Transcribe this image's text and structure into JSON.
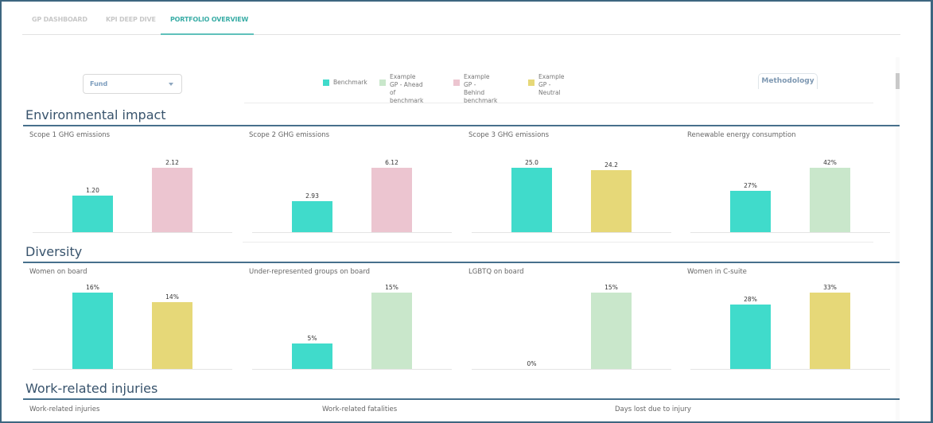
{
  "tabs": [
    {
      "label": "GP DASHBOARD",
      "active": false
    },
    {
      "label": "KPI DEEP DIVE",
      "active": false
    },
    {
      "label": "PORTFOLIO OVERVIEW",
      "active": true
    }
  ],
  "filters": {
    "fund_select": {
      "value": "Fund",
      "icon": "caret-down-icon"
    }
  },
  "legend": [
    {
      "label": "Benchmark",
      "color": "#40dbcb"
    },
    {
      "label": "Example GP - Ahead\nof benchmark",
      "color": "#c9e7cb"
    },
    {
      "label": "Example GP -\nBehind benchmark",
      "color": "#ecc5d0"
    },
    {
      "label": "Example GP -\nNeutral",
      "color": "#e6d878"
    }
  ],
  "methodology_button": "Methodology",
  "sections": {
    "environmental": "Environmental impact",
    "diversity": "Diversity",
    "injuries": "Work-related injuries"
  },
  "injury_charts": [
    "Work-related injuries",
    "Work-related fatalities",
    "Days lost due to injury"
  ],
  "chart_data": [
    {
      "type": "bar",
      "section": "Environmental impact",
      "title": "Scope 1 GHG emissions",
      "categories": [
        "Benchmark",
        "Example GP"
      ],
      "values": [
        1.2,
        2.12
      ],
      "labels": [
        "1.20",
        "2.12"
      ],
      "colors": [
        "#40dbcb",
        "#ecc5d0"
      ],
      "status": "Behind benchmark"
    },
    {
      "type": "bar",
      "section": "Environmental impact",
      "title": "Scope 2 GHG emissions",
      "categories": [
        "Benchmark",
        "Example GP"
      ],
      "values": [
        2.93,
        6.12
      ],
      "labels": [
        "2.93",
        "6.12"
      ],
      "colors": [
        "#40dbcb",
        "#ecc5d0"
      ],
      "status": "Behind benchmark"
    },
    {
      "type": "bar",
      "section": "Environmental impact",
      "title": "Scope 3 GHG emissions",
      "categories": [
        "Benchmark",
        "Example GP"
      ],
      "values": [
        25.0,
        24.2
      ],
      "labels": [
        "25.0",
        "24.2"
      ],
      "colors": [
        "#40dbcb",
        "#e6d878"
      ],
      "status": "Neutral"
    },
    {
      "type": "bar",
      "section": "Environmental impact",
      "title": "Renewable energy consumption",
      "categories": [
        "Benchmark",
        "Example GP"
      ],
      "values": [
        27,
        42
      ],
      "labels": [
        "27%",
        "42%"
      ],
      "colors": [
        "#40dbcb",
        "#c9e7cb"
      ],
      "status": "Ahead of benchmark"
    },
    {
      "type": "bar",
      "section": "Diversity",
      "title": "Women on board",
      "categories": [
        "Benchmark",
        "Example GP"
      ],
      "values": [
        16,
        14
      ],
      "labels": [
        "16%",
        "14%"
      ],
      "colors": [
        "#40dbcb",
        "#e6d878"
      ],
      "status": "Neutral"
    },
    {
      "type": "bar",
      "section": "Diversity",
      "title": "Under-represented groups on board",
      "categories": [
        "Benchmark",
        "Example GP"
      ],
      "values": [
        5,
        15
      ],
      "labels": [
        "5%",
        "15%"
      ],
      "colors": [
        "#40dbcb",
        "#c9e7cb"
      ],
      "status": "Ahead of benchmark"
    },
    {
      "type": "bar",
      "section": "Diversity",
      "title": "LGBTQ on board",
      "categories": [
        "Benchmark",
        "Example GP"
      ],
      "values": [
        0,
        15
      ],
      "labels": [
        "0%",
        "15%"
      ],
      "colors": [
        "#40dbcb",
        "#c9e7cb"
      ],
      "status": "Ahead of benchmark"
    },
    {
      "type": "bar",
      "section": "Diversity",
      "title": "Women in C-suite",
      "categories": [
        "Benchmark",
        "Example GP"
      ],
      "values": [
        28,
        33
      ],
      "labels": [
        "28%",
        "33%"
      ],
      "colors": [
        "#40dbcb",
        "#e6d878"
      ],
      "status": "Neutral"
    }
  ]
}
